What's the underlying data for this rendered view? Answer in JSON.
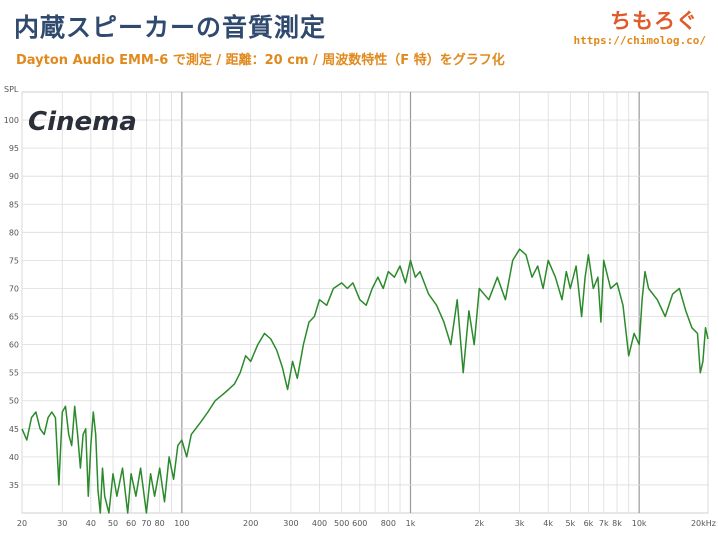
{
  "header": {
    "title": "内蔵スピーカーの音質測定",
    "subtitle": "Dayton Audio EMM-6 で測定 / 距離：20 cm / 周波数特性（F 特）をグラフ化",
    "logo": "ちもろぐ",
    "url": "https://chimolog.co/"
  },
  "chart_data": {
    "type": "line",
    "watermark": "Cinema",
    "ylabel": "SPL",
    "xscale": "log",
    "xlim": [
      20,
      20000
    ],
    "ylim": [
      30,
      105
    ],
    "grid": true,
    "x_ticks": [
      20,
      30,
      40,
      50,
      60,
      70,
      80,
      100,
      200,
      300,
      400,
      500,
      600,
      800,
      1000,
      2000,
      3000,
      4000,
      5000,
      6000,
      7000,
      8000,
      10000,
      20000
    ],
    "x_tick_labels": [
      "20",
      "30",
      "40",
      "50",
      "60",
      "70",
      "80",
      "100",
      "200",
      "300",
      "400",
      "500",
      "600",
      "800",
      "1k",
      "2k",
      "3k",
      "4k",
      "5k",
      "6k",
      "7k",
      "8k",
      "10k",
      "20kHz"
    ],
    "y_ticks": [
      35,
      40,
      45,
      50,
      55,
      60,
      65,
      70,
      75,
      80,
      85,
      90,
      95,
      100
    ],
    "line_color": "#2b8a2b",
    "series": [
      {
        "x": [
          20,
          21,
          22,
          23,
          24,
          25,
          26,
          27,
          28,
          29,
          30,
          31,
          32,
          33,
          34,
          35,
          36,
          37,
          38,
          39,
          40,
          41,
          42,
          43,
          44,
          45,
          46,
          48,
          50,
          52,
          55,
          58,
          60,
          63,
          66,
          70,
          73,
          76,
          80,
          84,
          88,
          92,
          96,
          100,
          105,
          110,
          120,
          130,
          140,
          150,
          160,
          170,
          180,
          190,
          200,
          215,
          230,
          245,
          260,
          275,
          290,
          305,
          320,
          340,
          360,
          380,
          400,
          430,
          460,
          500,
          530,
          560,
          600,
          640,
          680,
          720,
          760,
          800,
          850,
          900,
          950,
          1000,
          1050,
          1100,
          1200,
          1300,
          1400,
          1500,
          1600,
          1700,
          1800,
          1900,
          2000,
          2200,
          2400,
          2600,
          2800,
          3000,
          3200,
          3400,
          3600,
          3800,
          4000,
          4300,
          4600,
          4800,
          5000,
          5300,
          5600,
          5800,
          6000,
          6300,
          6600,
          6800,
          7000,
          7500,
          8000,
          8500,
          9000,
          9500,
          10000,
          10300,
          10600,
          11000,
          12000,
          13000,
          14000,
          15000,
          16000,
          17000,
          18000,
          18500,
          19000,
          19500,
          20000
        ],
        "y": [
          45,
          43,
          47,
          48,
          45,
          44,
          47,
          48,
          47,
          35,
          48,
          49,
          44,
          42,
          49,
          44,
          38,
          44,
          45,
          33,
          42,
          48,
          44,
          34,
          30,
          38,
          33,
          30,
          37,
          33,
          38,
          30,
          37,
          33,
          38,
          30,
          37,
          33,
          38,
          32,
          40,
          36,
          42,
          43,
          40,
          44,
          46,
          48,
          50,
          51,
          52,
          53,
          55,
          58,
          57,
          60,
          62,
          61,
          59,
          56,
          52,
          57,
          54,
          60,
          64,
          65,
          68,
          67,
          70,
          71,
          70,
          71,
          68,
          67,
          70,
          72,
          70,
          73,
          72,
          74,
          71,
          75,
          72,
          73,
          69,
          67,
          64,
          60,
          68,
          55,
          66,
          60,
          70,
          68,
          72,
          68,
          75,
          77,
          76,
          72,
          74,
          70,
          75,
          72,
          68,
          73,
          70,
          74,
          65,
          72,
          76,
          70,
          72,
          64,
          75,
          70,
          71,
          67,
          58,
          62,
          60,
          68,
          73,
          70,
          68,
          65,
          69,
          70,
          66,
          63,
          62,
          55,
          57,
          63,
          61
        ]
      }
    ]
  }
}
